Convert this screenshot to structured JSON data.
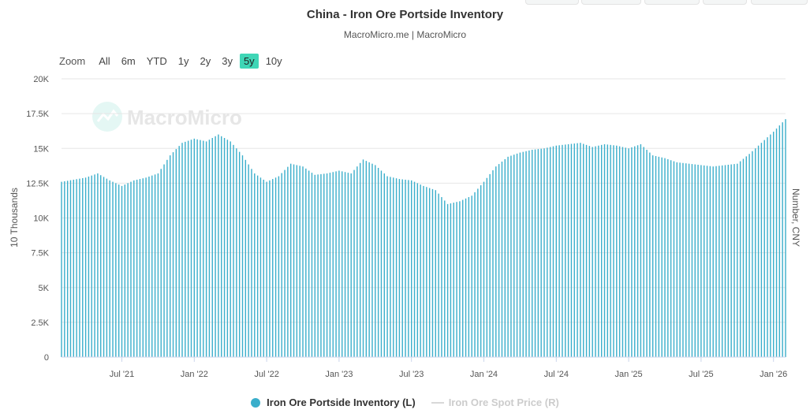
{
  "header": {
    "title": "China - Iron Ore Portside Inventory",
    "subtitle": "MacroMicro.me | MacroMicro"
  },
  "zoom": {
    "label": "Zoom",
    "buttons": [
      "All",
      "6m",
      "YTD",
      "1y",
      "2y",
      "3y",
      "5y",
      "10y"
    ],
    "active": "5y"
  },
  "watermark": "MacroMicro",
  "legend": {
    "items": [
      {
        "label": "Iron Ore Portside Inventory (L)",
        "enabled": true,
        "color": "#3aaecb"
      },
      {
        "label": "Iron Ore Spot Price (R)",
        "enabled": false,
        "color": "#d8d8d8"
      }
    ]
  },
  "chart_data": {
    "type": "bar",
    "title": "China - Iron Ore Portside Inventory",
    "ylabel": "10 Thousands",
    "y2label": "Number, CNY",
    "ylim": [
      0,
      20000
    ],
    "yticks": [
      "0",
      "2.5K",
      "5K",
      "7.5K",
      "10K",
      "12.5K",
      "15K",
      "17.5K",
      "20K"
    ],
    "xticks": [
      "Jul '21",
      "Jan '22",
      "Jul '22",
      "Jan '23",
      "Jul '23",
      "Jan '24",
      "Jul '24",
      "Jan '25",
      "Jul '25",
      "Jan '26"
    ],
    "x_start": "2021-02",
    "x_end": "2026-02",
    "series": [
      {
        "name": "Iron Ore Portside Inventory (L)",
        "color": "#3aaecb",
        "anchors": [
          [
            "2021-02",
            12600
          ],
          [
            "2021-04",
            12900
          ],
          [
            "2021-05",
            13200
          ],
          [
            "2021-06",
            12700
          ],
          [
            "2021-07",
            12300
          ],
          [
            "2021-08",
            12700
          ],
          [
            "2021-09",
            12900
          ],
          [
            "2021-10",
            13200
          ],
          [
            "2021-11",
            14500
          ],
          [
            "2021-12",
            15400
          ],
          [
            "2022-01",
            15700
          ],
          [
            "2022-02",
            15500
          ],
          [
            "2022-03",
            16000
          ],
          [
            "2022-04",
            15500
          ],
          [
            "2022-05",
            14500
          ],
          [
            "2022-06",
            13200
          ],
          [
            "2022-07",
            12600
          ],
          [
            "2022-08",
            13000
          ],
          [
            "2022-09",
            13900
          ],
          [
            "2022-10",
            13700
          ],
          [
            "2022-11",
            13100
          ],
          [
            "2022-12",
            13200
          ],
          [
            "2023-01",
            13400
          ],
          [
            "2023-02",
            13200
          ],
          [
            "2023-03",
            14200
          ],
          [
            "2023-04",
            13800
          ],
          [
            "2023-05",
            13000
          ],
          [
            "2023-06",
            12800
          ],
          [
            "2023-07",
            12700
          ],
          [
            "2023-08",
            12300
          ],
          [
            "2023-09",
            12000
          ],
          [
            "2023-10",
            11000
          ],
          [
            "2023-11",
            11200
          ],
          [
            "2023-12",
            11600
          ],
          [
            "2024-01",
            12600
          ],
          [
            "2024-02",
            13700
          ],
          [
            "2024-03",
            14400
          ],
          [
            "2024-04",
            14700
          ],
          [
            "2024-05",
            14900
          ],
          [
            "2024-06",
            15000
          ],
          [
            "2024-07",
            15200
          ],
          [
            "2024-08",
            15300
          ],
          [
            "2024-09",
            15400
          ],
          [
            "2024-10",
            15100
          ],
          [
            "2024-11",
            15300
          ],
          [
            "2024-12",
            15200
          ],
          [
            "2025-01",
            15000
          ],
          [
            "2025-02",
            15300
          ],
          [
            "2025-03",
            14500
          ],
          [
            "2025-04",
            14300
          ],
          [
            "2025-05",
            14000
          ],
          [
            "2025-06",
            13900
          ],
          [
            "2025-07",
            13800
          ],
          [
            "2025-08",
            13700
          ],
          [
            "2025-09",
            13800
          ],
          [
            "2025-10",
            13900
          ],
          [
            "2025-11",
            14600
          ],
          [
            "2025-12",
            15400
          ],
          [
            "2026-01",
            16200
          ],
          [
            "2026-02",
            17100
          ]
        ]
      },
      {
        "name": "Iron Ore Spot Price (R)",
        "color": "#d8d8d8",
        "visible": false,
        "values": []
      }
    ],
    "grid": true,
    "legend_position": "bottom"
  }
}
